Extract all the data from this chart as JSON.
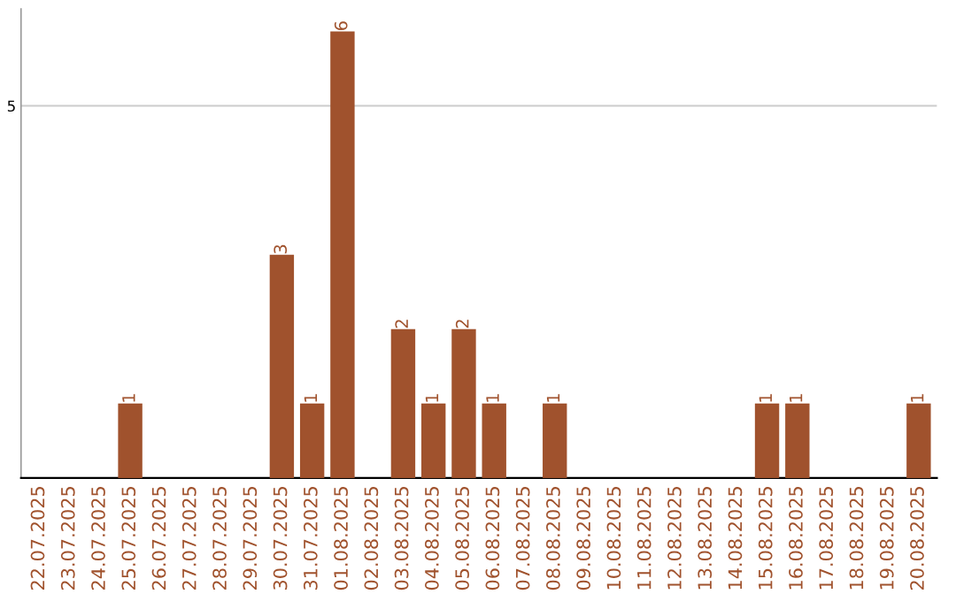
{
  "chart_data": {
    "type": "bar",
    "categories": [
      "22.07.2025",
      "23.07.2025",
      "24.07.2025",
      "25.07.2025",
      "26.07.2025",
      "27.07.2025",
      "28.07.2025",
      "29.07.2025",
      "30.07.2025",
      "31.07.2025",
      "01.08.2025",
      "02.08.2025",
      "03.08.2025",
      "04.08.2025",
      "05.08.2025",
      "06.08.2025",
      "07.08.2025",
      "08.08.2025",
      "09.08.2025",
      "10.08.2025",
      "11.08.2025",
      "12.08.2025",
      "13.08.2025",
      "14.08.2025",
      "15.08.2025",
      "16.08.2025",
      "17.08.2025",
      "18.08.2025",
      "19.08.2025",
      "20.08.2025"
    ],
    "values": [
      0,
      0,
      0,
      1,
      0,
      0,
      0,
      0,
      3,
      1,
      6,
      0,
      2,
      1,
      2,
      1,
      0,
      1,
      0,
      0,
      0,
      0,
      0,
      0,
      1,
      1,
      0,
      0,
      0,
      1
    ],
    "value_labels": [
      null,
      null,
      null,
      "1",
      null,
      null,
      null,
      null,
      "3",
      "1",
      "6",
      null,
      "2",
      "1",
      "2",
      "1",
      null,
      "1",
      null,
      null,
      null,
      null,
      null,
      null,
      "1",
      "1",
      null,
      null,
      null,
      "1"
    ],
    "color": "#a0522d",
    "ylim": [
      0,
      6.3
    ],
    "yticks": [
      5
    ],
    "grid": "y",
    "legend": false
  }
}
